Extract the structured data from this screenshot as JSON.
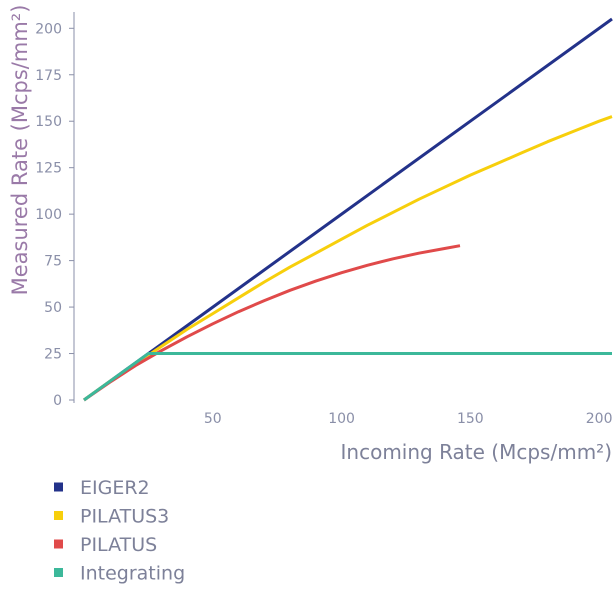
{
  "chart_data": {
    "type": "line",
    "xlabel": "Incoming Rate (Mcps/mm²)",
    "ylabel": "Measured Rate (Mcps/mm²)",
    "xlim": [
      0,
      205
    ],
    "ylim": [
      0,
      205
    ],
    "x_ticks": [
      "50",
      "100",
      "150",
      "200"
    ],
    "y_ticks": [
      "0",
      "25",
      "50",
      "75",
      "100",
      "125",
      "150",
      "175",
      "200"
    ],
    "grid": false,
    "legend_position": "bottom-left",
    "series": [
      {
        "name": "EIGER2",
        "color": "#23328a",
        "points": [
          [
            0,
            0
          ],
          [
            50,
            50
          ],
          [
            100,
            100
          ],
          [
            150,
            150
          ],
          [
            205,
            205
          ]
        ]
      },
      {
        "name": "PILATUS3",
        "color": "#f7cf0c",
        "points": [
          [
            0,
            0
          ],
          [
            10,
            10
          ],
          [
            20,
            19.5
          ],
          [
            30,
            28.8
          ],
          [
            40,
            38
          ],
          [
            50,
            46.5
          ],
          [
            60,
            55
          ],
          [
            70,
            63.5
          ],
          [
            80,
            71.5
          ],
          [
            90,
            79
          ],
          [
            100,
            86.5
          ],
          [
            110,
            94
          ],
          [
            120,
            101
          ],
          [
            130,
            108
          ],
          [
            140,
            114.5
          ],
          [
            150,
            121
          ],
          [
            160,
            127
          ],
          [
            170,
            133
          ],
          [
            180,
            139
          ],
          [
            190,
            144.5
          ],
          [
            200,
            150
          ],
          [
            205,
            152.5
          ]
        ]
      },
      {
        "name": "PILATUS",
        "color": "#e04a4a",
        "points": [
          [
            0,
            0
          ],
          [
            10,
            9.5
          ],
          [
            20,
            18.5
          ],
          [
            30,
            26.5
          ],
          [
            40,
            34
          ],
          [
            50,
            41
          ],
          [
            60,
            47.5
          ],
          [
            70,
            53.5
          ],
          [
            80,
            59
          ],
          [
            90,
            64
          ],
          [
            100,
            68.5
          ],
          [
            110,
            72.5
          ],
          [
            120,
            76
          ],
          [
            130,
            79
          ],
          [
            140,
            81.5
          ],
          [
            146,
            83
          ]
        ]
      },
      {
        "name": "Integrating",
        "color": "#3cb89a",
        "points": [
          [
            0,
            0
          ],
          [
            25,
            25
          ],
          [
            205,
            25
          ]
        ]
      }
    ]
  }
}
